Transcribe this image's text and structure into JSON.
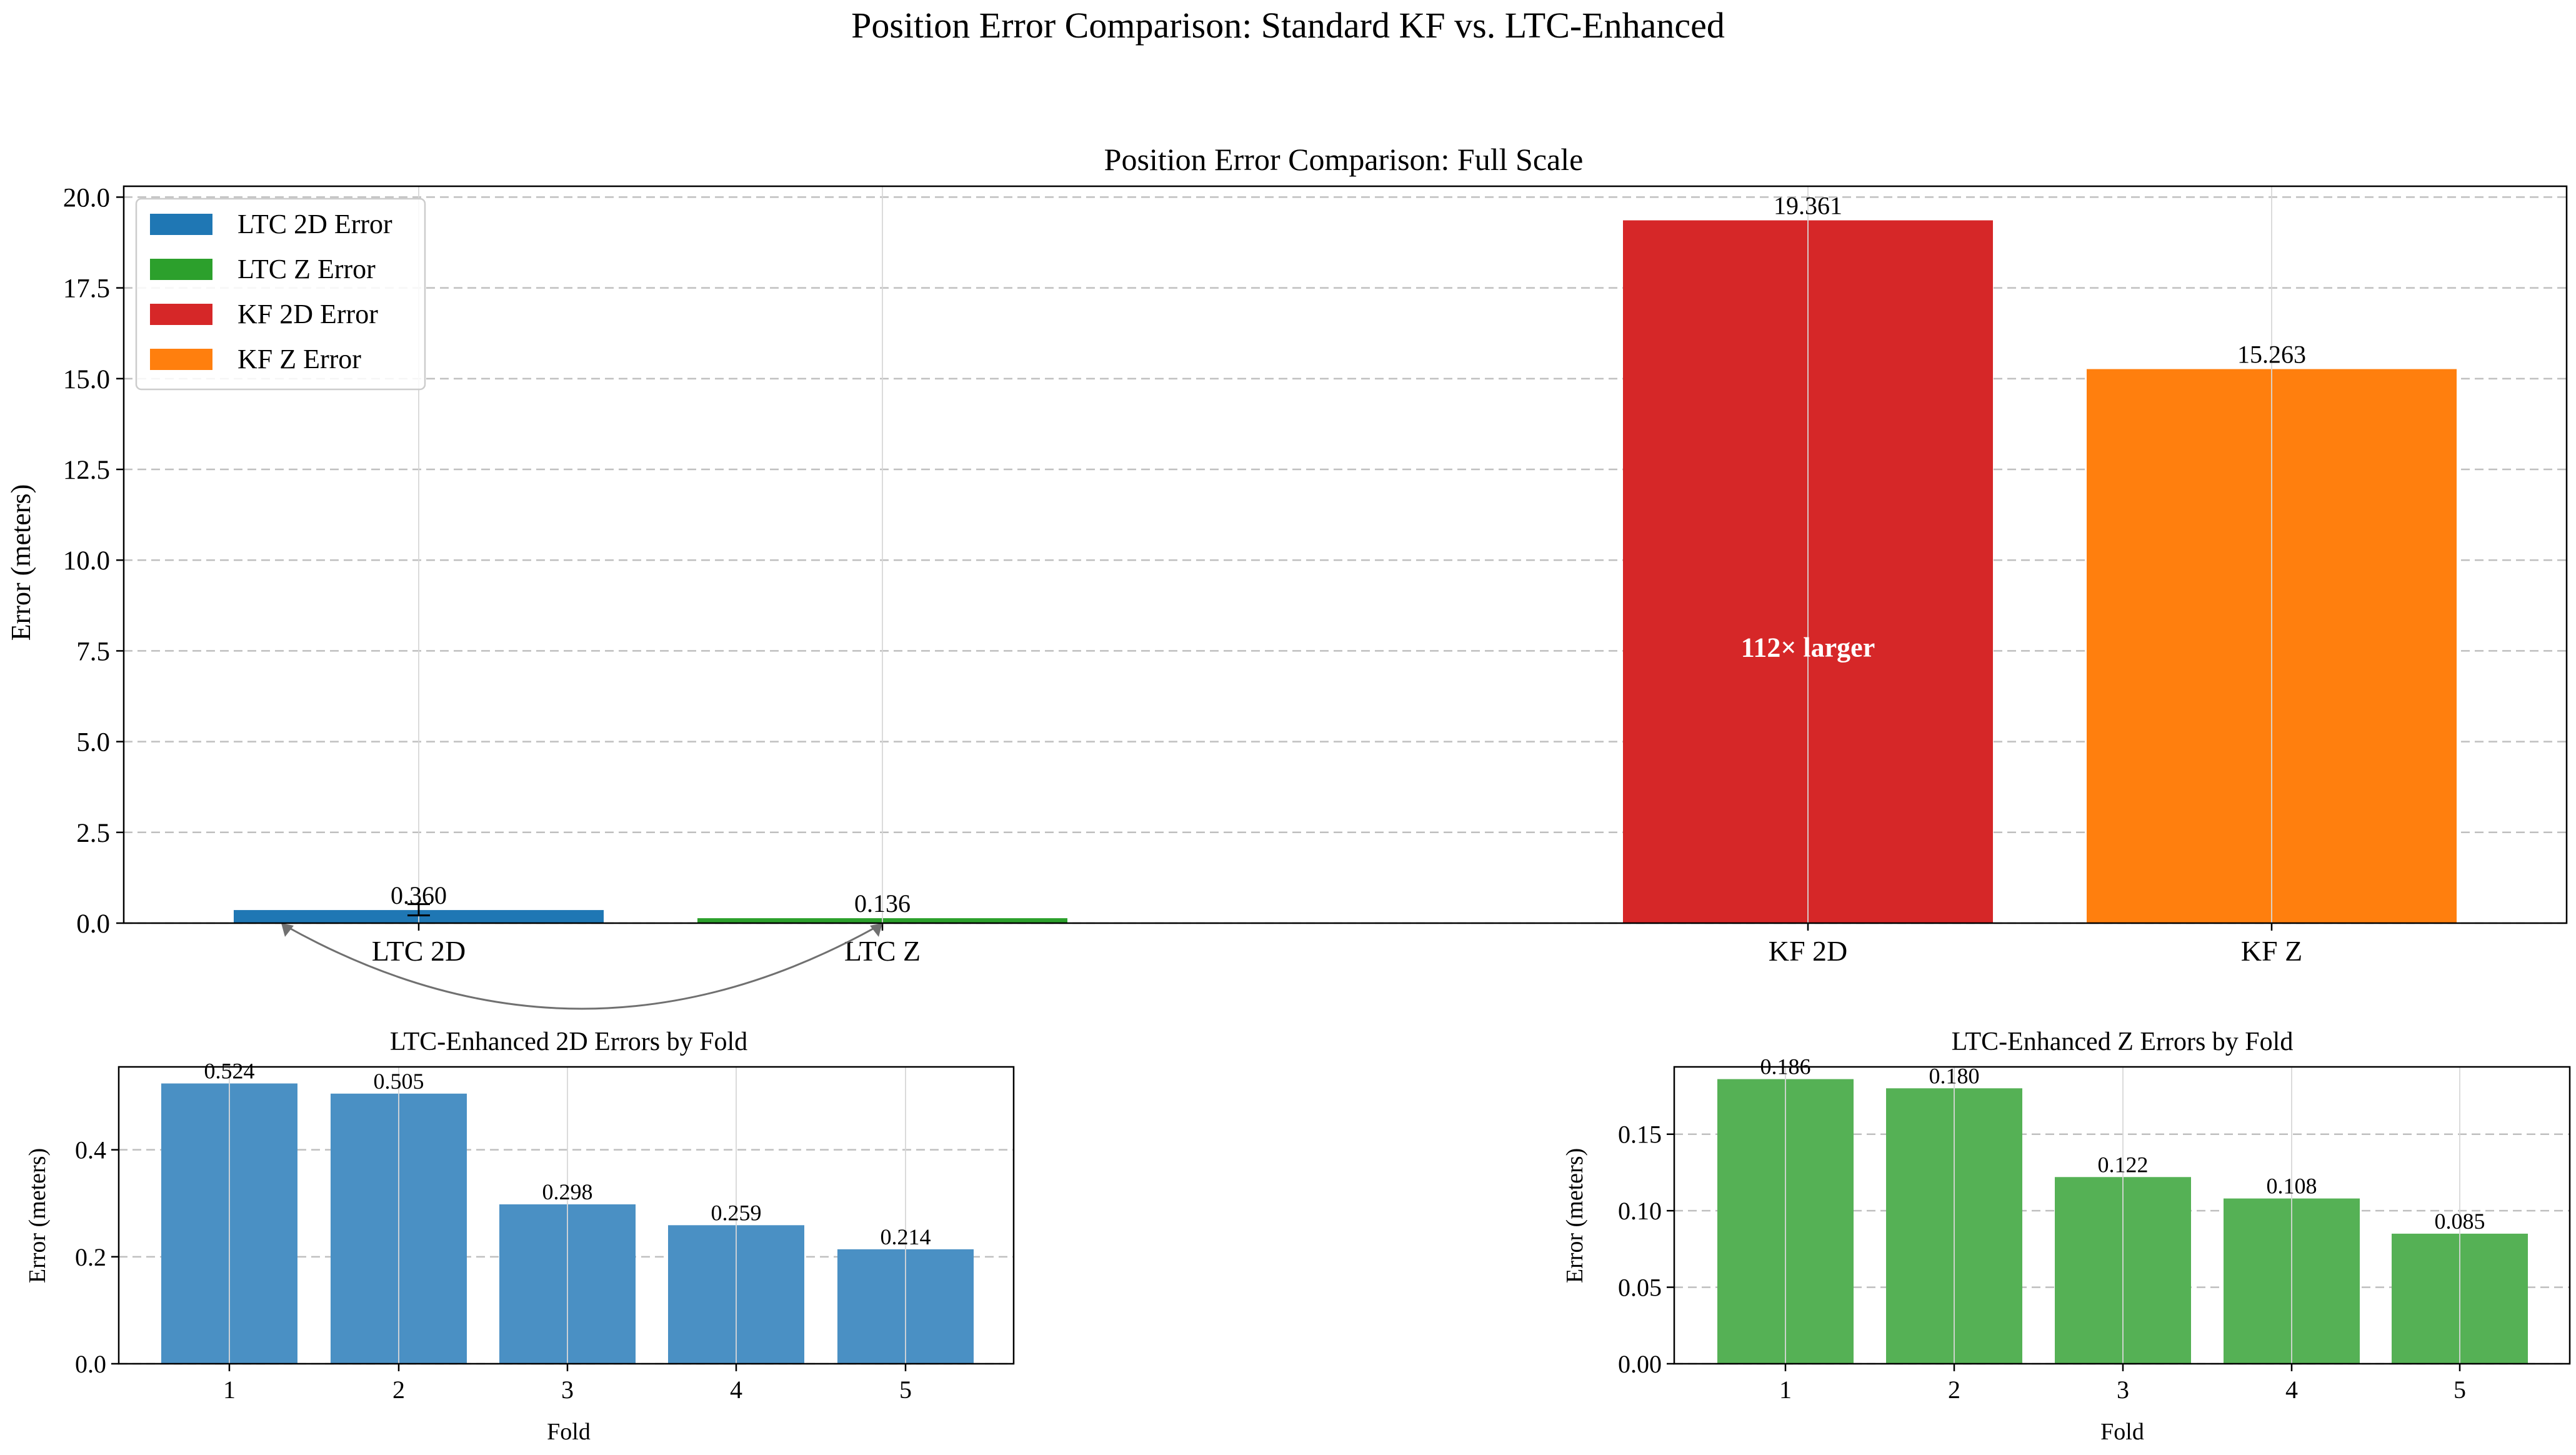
{
  "figure": {
    "title": "Position Error Comparison: Standard KF vs. LTC-Enhanced"
  },
  "chart_data": [
    {
      "type": "bar",
      "title": "Position Error Comparison: Full Scale",
      "xlabel": "",
      "ylabel": "Error (meters)",
      "categories": [
        "LTC 2D",
        "LTC Z",
        "KF 2D",
        "KF Z"
      ],
      "values": [
        0.36,
        0.136,
        19.361,
        15.263
      ],
      "value_labels": [
        "0.360",
        "0.136",
        "19.361",
        "15.263"
      ],
      "colors": [
        "#1f77b4",
        "#2ca02c",
        "#d62728",
        "#ff7f0e"
      ],
      "error_bar": {
        "category": "LTC 2D",
        "value": 0.36,
        "lower": 0.214,
        "upper": 0.524
      },
      "ylim": [
        0,
        20.3
      ],
      "yticks": [
        0.0,
        2.5,
        5.0,
        7.5,
        10.0,
        12.5,
        15.0,
        17.5,
        20.0
      ],
      "ytick_labels": [
        "0.0",
        "2.5",
        "5.0",
        "7.5",
        "10.0",
        "12.5",
        "15.0",
        "17.5",
        "20.0"
      ],
      "legend": {
        "position": "top-left",
        "entries": [
          {
            "label": "LTC 2D Error",
            "color": "#1f77b4"
          },
          {
            "label": "LTC Z Error",
            "color": "#2ca02c"
          },
          {
            "label": "KF 2D Error",
            "color": "#d62728"
          },
          {
            "label": "KF Z Error",
            "color": "#ff7f0e"
          }
        ]
      },
      "annotation": {
        "text": "112× larger",
        "category": "KF 2D",
        "y": 7.6
      },
      "grid": true
    },
    {
      "type": "bar",
      "title": "LTC-Enhanced 2D Errors by Fold",
      "xlabel": "Fold",
      "ylabel": "Error (meters)",
      "categories": [
        "1",
        "2",
        "3",
        "4",
        "5"
      ],
      "values": [
        0.524,
        0.505,
        0.298,
        0.259,
        0.214
      ],
      "value_labels": [
        "0.524",
        "0.505",
        "0.298",
        "0.259",
        "0.214"
      ],
      "color": "#4a90c4",
      "ylim": [
        0,
        0.555
      ],
      "yticks": [
        0.0,
        0.2,
        0.4
      ],
      "ytick_labels": [
        "0.0",
        "0.2",
        "0.4"
      ],
      "grid": true
    },
    {
      "type": "bar",
      "title": "LTC-Enhanced Z Errors by Fold",
      "xlabel": "Fold",
      "ylabel": "Error (meters)",
      "categories": [
        "1",
        "2",
        "3",
        "4",
        "5"
      ],
      "values": [
        0.186,
        0.18,
        0.122,
        0.108,
        0.085
      ],
      "value_labels": [
        "0.186",
        "0.180",
        "0.122",
        "0.108",
        "0.085"
      ],
      "color": "#55b155",
      "ylim": [
        0,
        0.194
      ],
      "yticks": [
        0.0,
        0.05,
        0.1,
        0.15
      ],
      "ytick_labels": [
        "0.00",
        "0.05",
        "0.10",
        "0.15"
      ],
      "grid": true
    }
  ]
}
